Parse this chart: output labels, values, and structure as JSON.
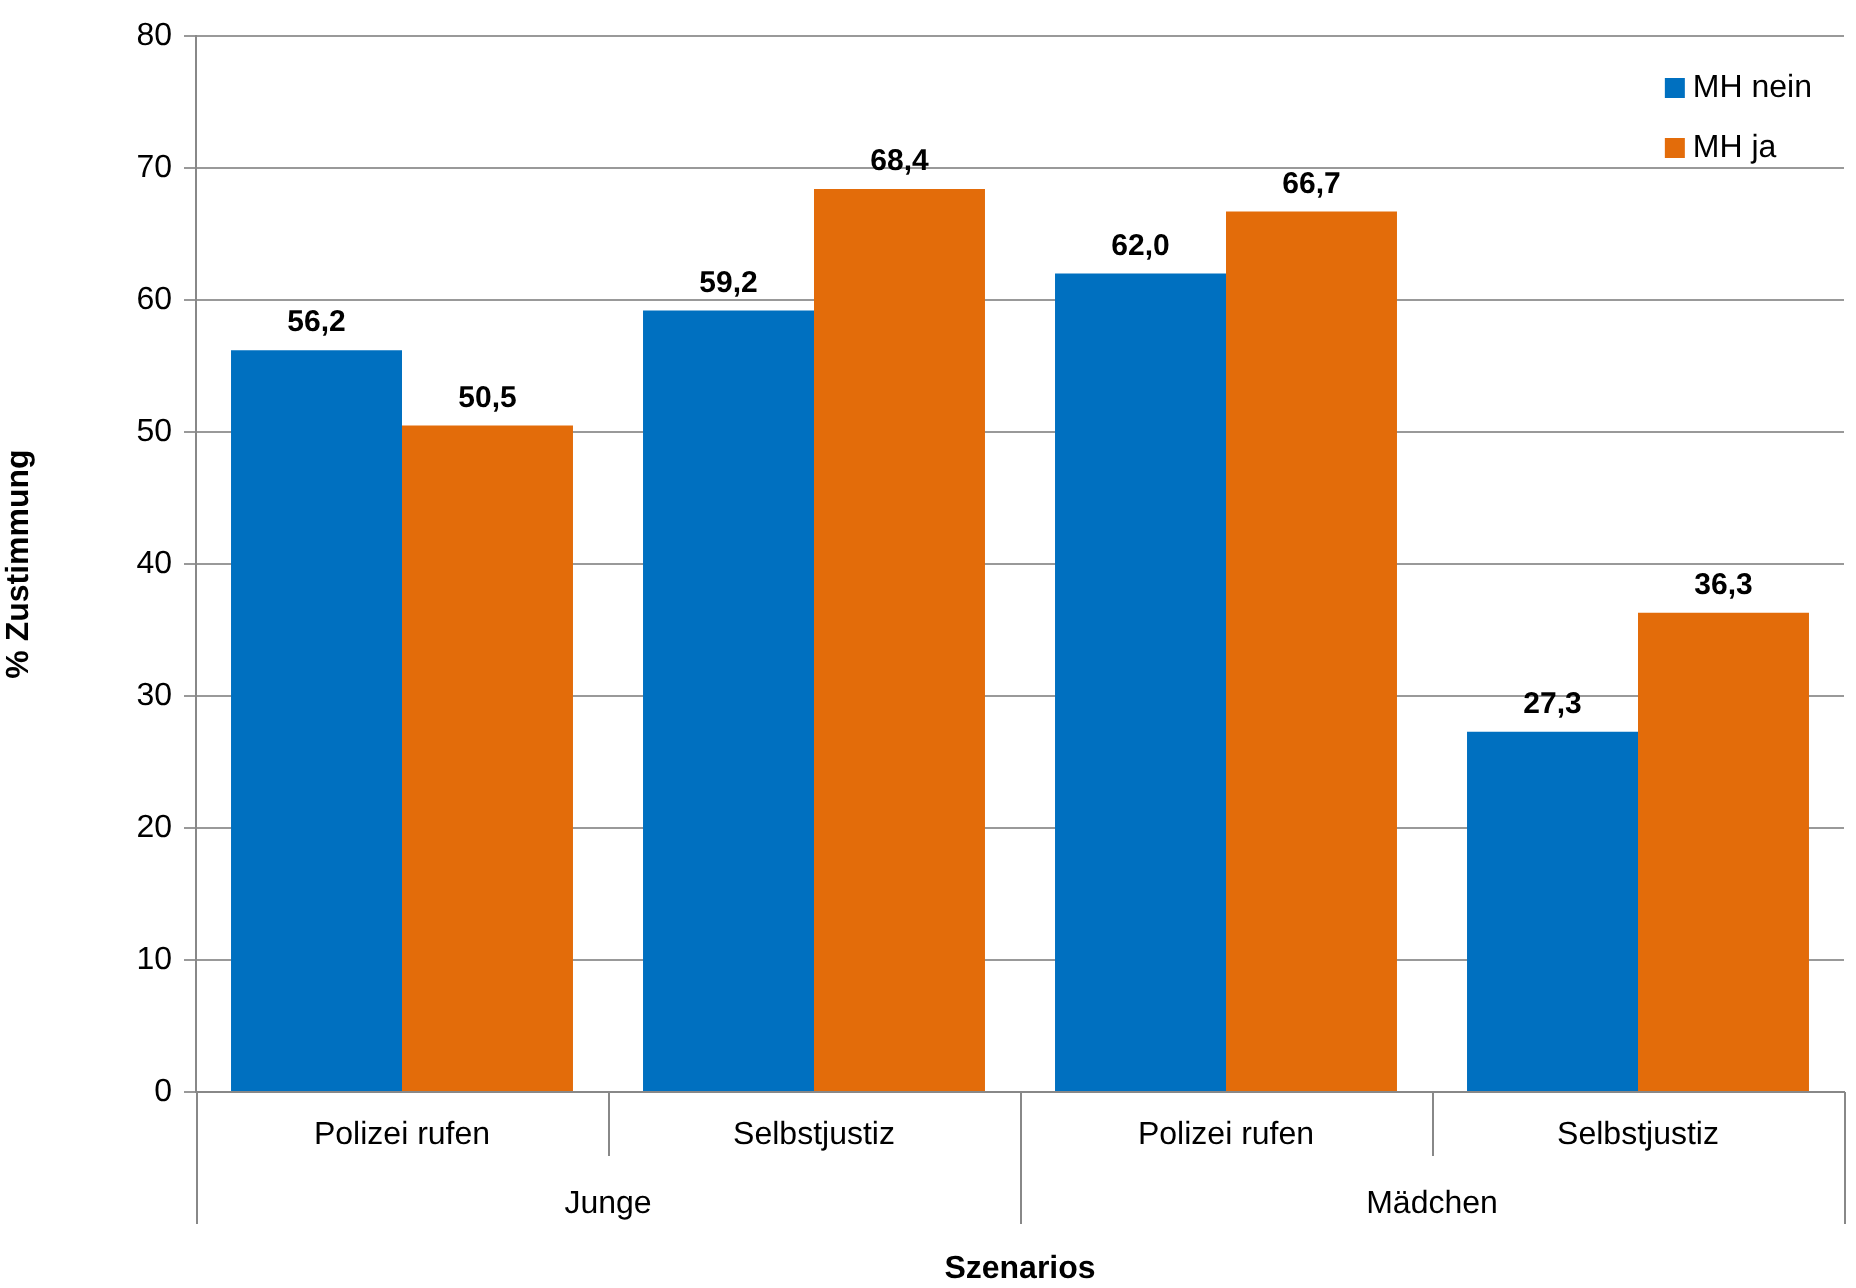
{
  "chart_data": {
    "type": "bar",
    "xlabel": "Szenarios",
    "ylabel": "% Zustimmung",
    "categories": [
      "Polizei rufen",
      "Selbstjustiz",
      "Polizei rufen",
      "Selbstjustiz"
    ],
    "series": [
      {
        "name": "MH nein",
        "color": "#0070c0",
        "values": [
          56.2,
          59.2,
          62.0,
          27.3
        ],
        "value_labels": [
          "56,2",
          "59,2",
          "62,0",
          "27,3"
        ]
      },
      {
        "name": "MH ja",
        "color": "#e36c0a",
        "values": [
          50.5,
          68.4,
          66.7,
          36.3
        ],
        "value_labels": [
          "50,5",
          "68,4",
          "66,7",
          "36,3"
        ]
      }
    ],
    "annotations": [
      "Junge",
      "Mädchen"
    ],
    "ylim": [
      0,
      80
    ],
    "yticks": [
      0,
      10,
      20,
      30,
      40,
      50,
      60,
      70,
      80
    ],
    "grid": "y",
    "legend": "top right"
  }
}
